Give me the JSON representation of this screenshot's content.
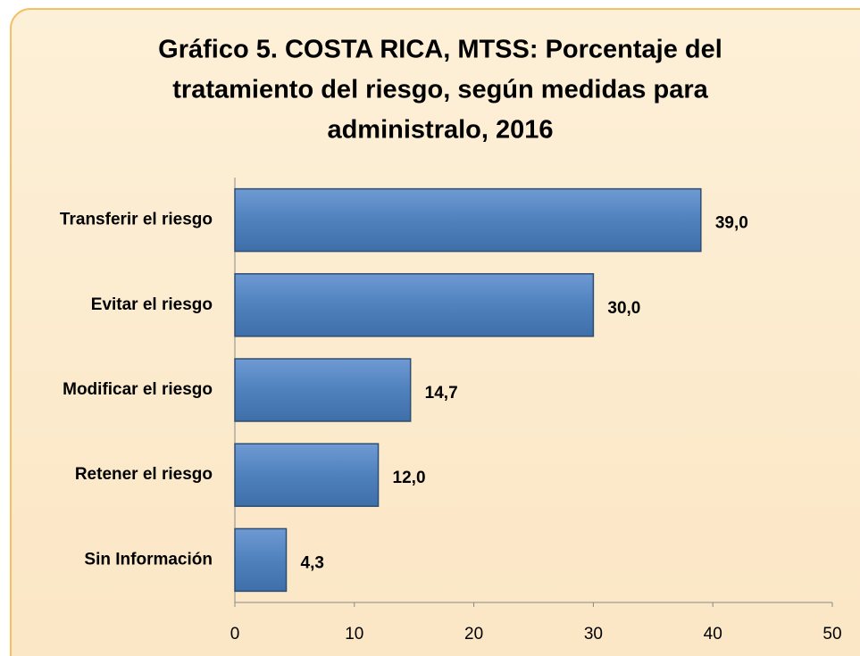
{
  "chart_data": {
    "type": "bar",
    "orientation": "horizontal",
    "title": [
      "Gráfico 5.  COSTA RICA, MTSS:  Porcentaje del",
      "tratamiento del riesgo, según medidas para",
      "administralo, 2016"
    ],
    "categories": [
      "Transferir el riesgo",
      "Evitar el riesgo",
      "Modificar el riesgo",
      "Retener el riesgo",
      "Sin Información"
    ],
    "values": [
      39.0,
      30.0,
      14.7,
      12.0,
      4.3
    ],
    "value_labels": [
      "39,0",
      "30,0",
      "14,7",
      "12,0",
      "4,3"
    ],
    "color": "#4f81bd",
    "xlim": [
      0,
      50
    ],
    "xticks": [
      0,
      10,
      20,
      30,
      40,
      50
    ],
    "grid": false
  }
}
